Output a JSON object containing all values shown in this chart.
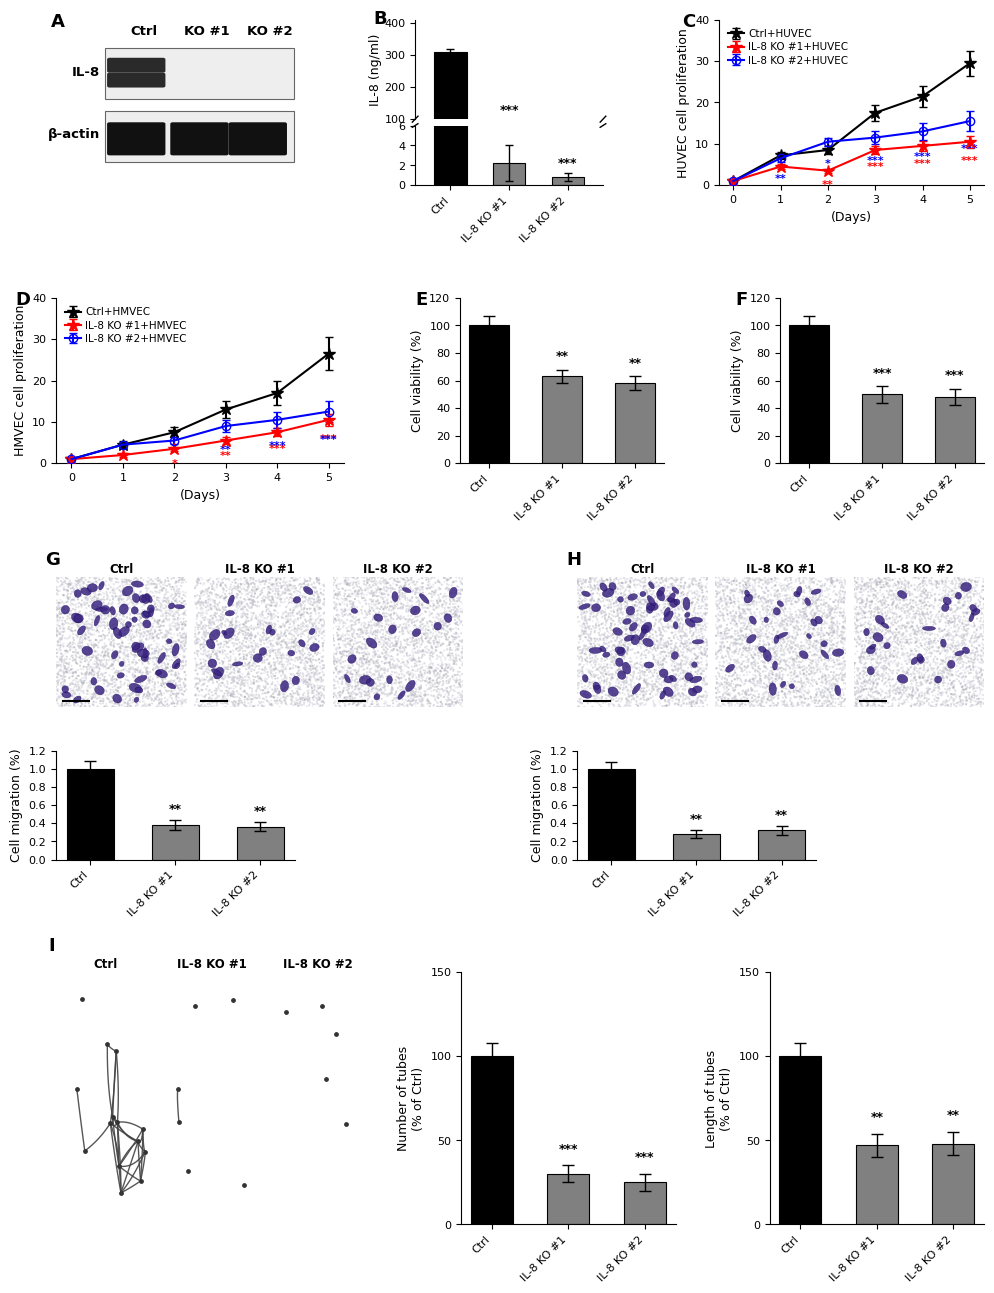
{
  "B": {
    "categories": [
      "Ctrl",
      "IL-8 KO #1",
      "IL-8 KO #2"
    ],
    "values": [
      310,
      2.2,
      0.8
    ],
    "errors": [
      8,
      1.8,
      0.4
    ],
    "bar_colors": [
      "#000000",
      "#808080",
      "#808080"
    ],
    "ylabel": "IL-8 (ng/ml)",
    "sig_labels": [
      "",
      "***",
      "***"
    ]
  },
  "C": {
    "days": [
      0,
      1,
      2,
      3,
      4,
      5
    ],
    "ctrl": [
      1.0,
      7.2,
      8.5,
      17.5,
      21.5,
      29.5
    ],
    "ctrl_err": [
      0.3,
      0.8,
      1.0,
      2.0,
      2.5,
      3.0
    ],
    "ko1": [
      1.0,
      4.5,
      3.5,
      8.5,
      9.5,
      10.5
    ],
    "ko1_err": [
      0.2,
      0.5,
      0.5,
      1.0,
      1.2,
      1.5
    ],
    "ko2": [
      1.0,
      6.5,
      10.5,
      11.5,
      13.0,
      15.5
    ],
    "ko2_err": [
      0.3,
      0.8,
      1.0,
      1.5,
      2.0,
      2.5
    ],
    "colors": [
      "#000000",
      "#FF0000",
      "#0000FF"
    ],
    "ylabel": "HUVEC cell proliferation",
    "xlabel": "(Days)",
    "ylim": [
      0,
      40
    ],
    "legend": [
      "Ctrl+HUVEC",
      "IL-8 KO #1+HUVEC",
      "IL-8 KO #2+HUVEC"
    ],
    "sig_days_red": [
      2,
      3,
      4,
      5
    ],
    "sig_labels_red": [
      "**",
      "***",
      "***",
      "***"
    ],
    "sig_days_blue": [
      1,
      2,
      3,
      4,
      5
    ],
    "sig_labels_blue": [
      "**",
      "*",
      "***",
      "***",
      "***"
    ]
  },
  "D": {
    "days": [
      0,
      1,
      2,
      3,
      4,
      5
    ],
    "ctrl": [
      1.0,
      4.5,
      7.5,
      13.0,
      17.0,
      26.5
    ],
    "ctrl_err": [
      0.3,
      0.8,
      1.2,
      2.0,
      3.0,
      4.0
    ],
    "ko1": [
      1.0,
      2.0,
      3.5,
      5.5,
      7.5,
      10.5
    ],
    "ko1_err": [
      0.2,
      0.4,
      0.5,
      0.8,
      1.0,
      1.5
    ],
    "ko2": [
      1.0,
      4.5,
      5.5,
      9.0,
      10.5,
      12.5
    ],
    "ko2_err": [
      0.3,
      0.7,
      0.8,
      1.5,
      2.0,
      2.5
    ],
    "colors": [
      "#000000",
      "#FF0000",
      "#0000FF"
    ],
    "ylabel": "HMVEC cell proliferation",
    "xlabel": "(Days)",
    "ylim": [
      0,
      40
    ],
    "legend": [
      "Ctrl+HMVEC",
      "IL-8 KO #1+HMVEC",
      "IL-8 KO #2+HMVEC"
    ],
    "sig_days_red": [
      2,
      3,
      4,
      5
    ],
    "sig_labels_red": [
      "*",
      "**",
      "***",
      "***"
    ],
    "sig_days_blue": [
      3,
      4,
      5
    ],
    "sig_labels_blue": [
      "**",
      "***",
      "***"
    ]
  },
  "E": {
    "categories": [
      "Ctrl",
      "IL-8 KO #1",
      "IL-8 KO #2"
    ],
    "values": [
      100,
      63,
      58
    ],
    "errors": [
      7,
      5,
      5
    ],
    "bar_colors": [
      "#000000",
      "#808080",
      "#808080"
    ],
    "ylabel": "Cell viability (%)",
    "ylim": [
      0,
      120
    ],
    "yticks": [
      0,
      20,
      40,
      60,
      80,
      100,
      120
    ],
    "sig_labels": [
      "",
      "**",
      "**"
    ]
  },
  "F": {
    "categories": [
      "Ctrl",
      "IL-8 KO #1",
      "IL-8 KO #2"
    ],
    "values": [
      100,
      50,
      48
    ],
    "errors": [
      7,
      6,
      6
    ],
    "bar_colors": [
      "#000000",
      "#808080",
      "#808080"
    ],
    "ylabel": "Cell viability (%)",
    "ylim": [
      0,
      120
    ],
    "yticks": [
      0,
      20,
      40,
      60,
      80,
      100,
      120
    ],
    "sig_labels": [
      "",
      "***",
      "***"
    ]
  },
  "G_bar": {
    "categories": [
      "Ctrl",
      "IL-8 KO #1",
      "IL-8 KO #2"
    ],
    "values": [
      1.0,
      0.38,
      0.36
    ],
    "errors": [
      0.08,
      0.05,
      0.05
    ],
    "bar_colors": [
      "#000000",
      "#808080",
      "#808080"
    ],
    "ylabel": "Cell migration (%)",
    "ylim": [
      0,
      1.2
    ],
    "yticks": [
      0.0,
      0.2,
      0.4,
      0.6,
      0.8,
      1.0,
      1.2
    ],
    "sig_labels": [
      "",
      "**",
      "**"
    ]
  },
  "H_bar": {
    "categories": [
      "Ctrl",
      "IL-8 KO #1",
      "IL-8 KO #2"
    ],
    "values": [
      1.0,
      0.28,
      0.32
    ],
    "errors": [
      0.07,
      0.04,
      0.05
    ],
    "bar_colors": [
      "#000000",
      "#808080",
      "#808080"
    ],
    "ylabel": "Cell migration (%)",
    "ylim": [
      0,
      1.2
    ],
    "yticks": [
      0.0,
      0.2,
      0.4,
      0.6,
      0.8,
      1.0,
      1.2
    ],
    "sig_labels": [
      "",
      "**",
      "**"
    ]
  },
  "I_num": {
    "categories": [
      "Ctrl",
      "IL-8 KO #1",
      "IL-8 KO #2"
    ],
    "values": [
      100,
      30,
      25
    ],
    "errors": [
      8,
      5,
      5
    ],
    "bar_colors": [
      "#000000",
      "#808080",
      "#808080"
    ],
    "ylabel": "Number of tubes\n(% of Ctrl)",
    "ylim": [
      0,
      150
    ],
    "yticks": [
      0,
      50,
      100,
      150
    ],
    "sig_labels": [
      "",
      "***",
      "***"
    ]
  },
  "I_len": {
    "categories": [
      "Ctrl",
      "IL-8 KO #1",
      "IL-8 KO #2"
    ],
    "values": [
      100,
      47,
      48
    ],
    "errors": [
      8,
      7,
      7
    ],
    "bar_colors": [
      "#000000",
      "#808080",
      "#808080"
    ],
    "ylabel": "Length of tubes\n(% of Ctrl)",
    "ylim": [
      0,
      150
    ],
    "yticks": [
      0,
      50,
      100,
      150
    ],
    "sig_labels": [
      "",
      "**",
      "**"
    ]
  },
  "bg": "#ffffff"
}
